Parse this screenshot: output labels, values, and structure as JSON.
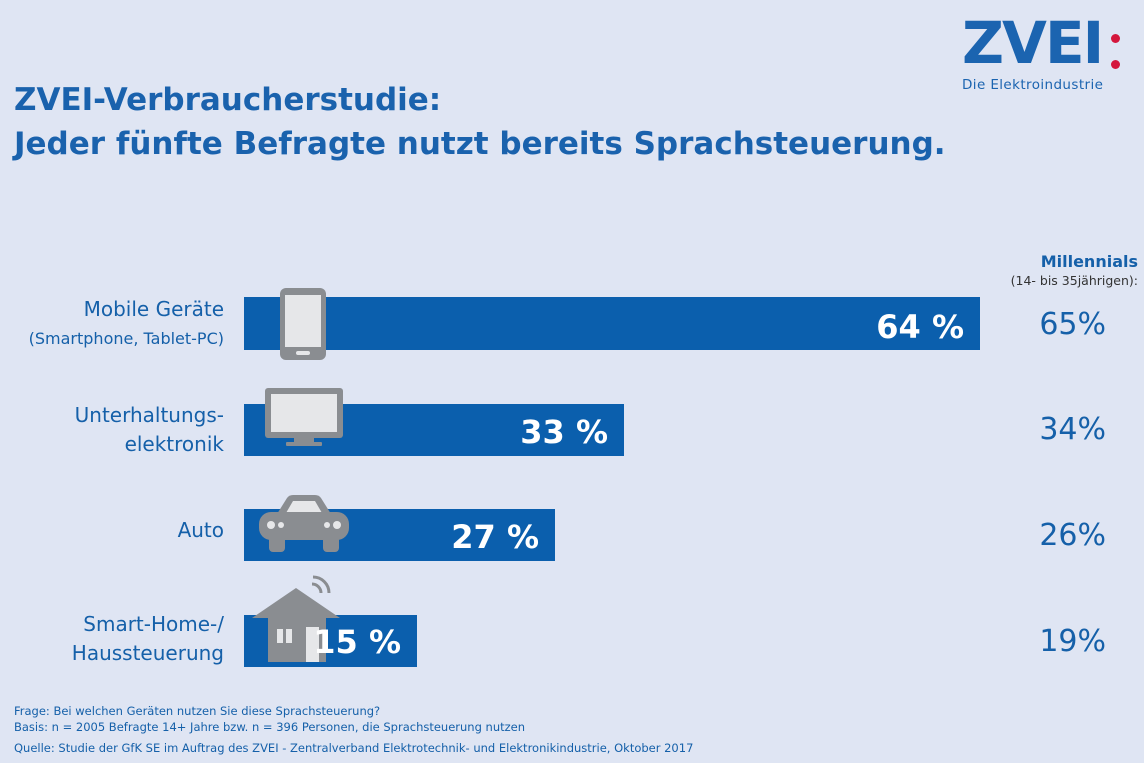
{
  "logo": {
    "text": "ZVEI",
    "subtitle": "Die Elektroindustrie",
    "dot_color": "#d4163c"
  },
  "title": {
    "line1": "ZVEI-Verbraucherstudie:",
    "line2": "Jeder fünfte Befragte nutzt bereits Sprachsteuerung."
  },
  "millennials": {
    "title": "Millennials",
    "subtitle": "(14- bis 35jährigen):"
  },
  "chart_data": {
    "type": "bar",
    "orientation": "horizontal",
    "unit": "%",
    "xlim": [
      0,
      100
    ],
    "categories": [
      {
        "label": "Mobile Geräte",
        "sublabel": "(Smartphone, Tablet-PC)",
        "icon": "smartphone-icon"
      },
      {
        "label": "Unterhaltungs-",
        "label2": "elektronik",
        "icon": "monitor-icon"
      },
      {
        "label": "Auto",
        "icon": "car-icon"
      },
      {
        "label": "Smart-Home-/",
        "label2": "Haussteuerung",
        "icon": "house-icon"
      }
    ],
    "series": [
      {
        "values": [
          64,
          33,
          27,
          15
        ],
        "display": [
          "64 %",
          "33 %",
          "27 %",
          "15 %"
        ],
        "color": "#0b5fad"
      },
      {
        "name": "Millennials",
        "values": [
          65,
          34,
          26,
          19
        ],
        "display": [
          "65%",
          "34%",
          "26%",
          "19%"
        ]
      }
    ]
  },
  "footer": {
    "question": "Frage: Bei welchen Geräten nutzen Sie diese Sprachsteuerung?",
    "basis": "Basis: n = 2005 Befragte 14+ Jahre bzw. n = 396 Personen, die Sprachsteuerung nutzen",
    "source": "Quelle: Studie der GfK SE im Auftrag des ZVEI - Zentralverband Elektrotechnik- und Elektronikindustrie, Oktober 2017"
  }
}
